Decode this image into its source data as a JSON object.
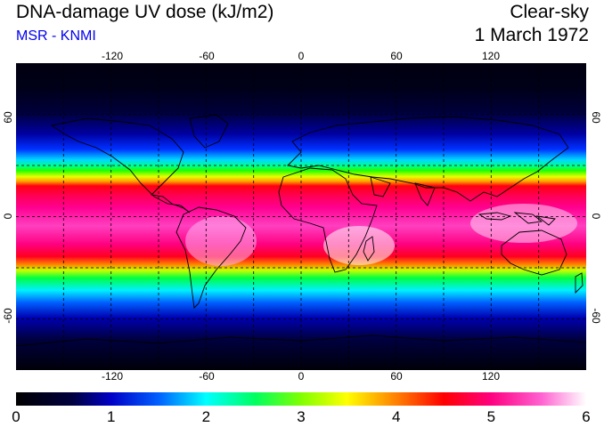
{
  "header": {
    "title": "DNA-damage UV dose (kJ/m2)",
    "source": "MSR - KNMI",
    "condition": "Clear-sky",
    "date": "1 March 1972"
  },
  "map": {
    "lon_ticks": [
      "-120",
      "-60",
      "0",
      "60",
      "120"
    ],
    "lat_ticks": [
      "60",
      "0",
      "-60"
    ],
    "lon_range": [
      -180,
      180
    ],
    "lat_range": [
      -90,
      90
    ],
    "gridlines": "dashed every 30 degrees",
    "coastlines": "black outlines"
  },
  "colorbar": {
    "tick_labels": [
      "0",
      "1",
      "2",
      "3",
      "4",
      "5",
      "6"
    ],
    "range": [
      0,
      6
    ],
    "unit": "kJ/m2",
    "colors": [
      "#000000",
      "#00004c",
      "#0000ff",
      "#00ffff",
      "#00ff00",
      "#ffff00",
      "#ff0000",
      "#ff00a0",
      "#ffffff"
    ]
  }
}
